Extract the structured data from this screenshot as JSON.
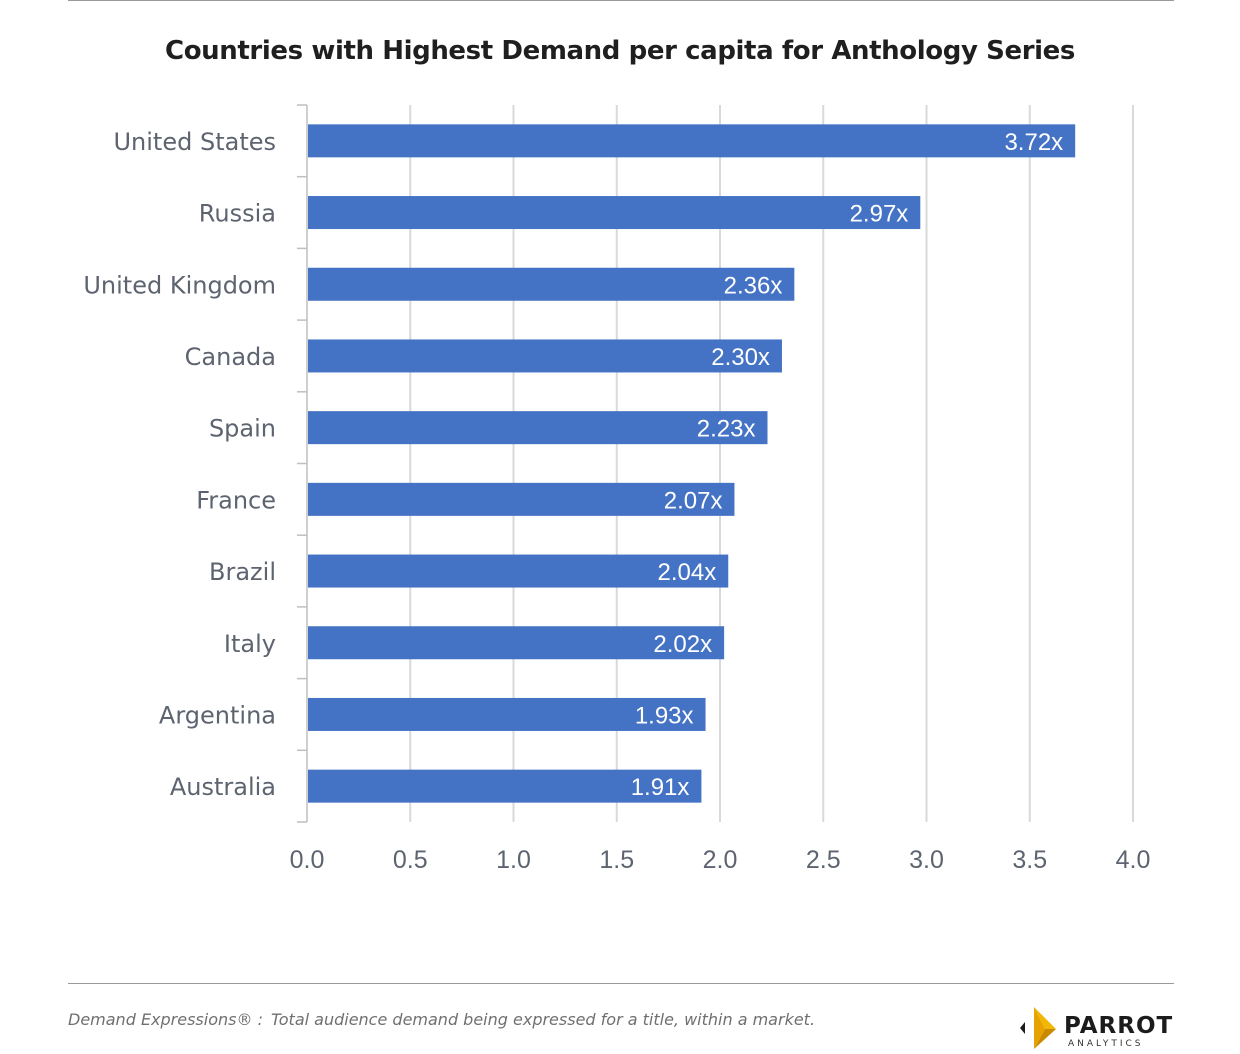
{
  "chart_data": {
    "type": "bar",
    "orientation": "horizontal",
    "title": "Countries with Highest Demand per capita for Anthology Series",
    "categories": [
      "United States",
      "Russia",
      "United Kingdom",
      "Canada",
      "Spain",
      "France",
      "Brazil",
      "Italy",
      "Argentina",
      "Australia"
    ],
    "values": [
      3.72,
      2.97,
      2.36,
      2.3,
      2.23,
      2.07,
      2.04,
      2.02,
      1.93,
      1.91
    ],
    "data_labels": [
      "3.72x",
      "2.97x",
      "2.36x",
      "2.30x",
      "2.23x",
      "2.07x",
      "2.04x",
      "2.02x",
      "1.93x",
      "1.91x"
    ],
    "xlim": [
      0,
      4
    ],
    "x_ticks": [
      0,
      0.5,
      1,
      1.5,
      2,
      2.5,
      3,
      3.5,
      4
    ],
    "x_tick_labels": [
      "0.0",
      "0.5",
      "1.0",
      "1.5",
      "2.0",
      "2.5",
      "3.0",
      "3.5",
      "4.0"
    ],
    "xlabel": "",
    "ylabel": "",
    "grid": true,
    "bar_color": "#4472c4"
  },
  "footer": {
    "footnote_term": "Demand Expressions® :",
    "footnote_text": "Total audience demand being expressed for a title, within a market.",
    "logo_name": "PARROT",
    "logo_sub": "ANALYTICS"
  },
  "colors": {
    "grid": "#d9d9d9",
    "axis": "#bfbfbf",
    "label": "#5d6470",
    "logo_gold": "#f2b705",
    "logo_dark": "#1c1c1c"
  }
}
